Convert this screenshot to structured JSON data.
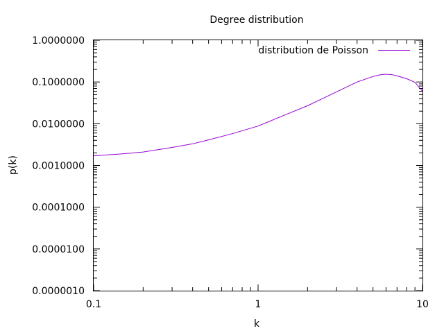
{
  "chart_data": {
    "type": "line",
    "title": "Degree distribution",
    "xlabel": "k",
    "ylabel": "p(k)",
    "x_scale": "log",
    "y_scale": "log",
    "xlim": [
      0.1,
      10
    ],
    "ylim": [
      1e-06,
      1
    ],
    "x_ticks": [
      {
        "value": 0.1,
        "label": "0.1"
      },
      {
        "value": 1,
        "label": "1"
      },
      {
        "value": 10,
        "label": "10"
      }
    ],
    "y_ticks": [
      {
        "value": 1,
        "label": "1.0000000"
      },
      {
        "value": 0.1,
        "label": "0.1000000"
      },
      {
        "value": 0.01,
        "label": "0.0100000"
      },
      {
        "value": 0.001,
        "label": "0.0010000"
      },
      {
        "value": 0.0001,
        "label": "0.0001000"
      },
      {
        "value": 1e-05,
        "label": "0.0000100"
      },
      {
        "value": 1e-06,
        "label": "0.0000010"
      }
    ],
    "grid": false,
    "legend_position": "top-right",
    "series": [
      {
        "name": "distribution de Poisson",
        "color": "#9400d3",
        "x": [
          0.1,
          0.15,
          0.2,
          0.3,
          0.4,
          0.5,
          0.7,
          1,
          1.5,
          2,
          2.5,
          3,
          4,
          5,
          5.5,
          6,
          6.5,
          7,
          8,
          9,
          10
        ],
        "y": [
          0.0017,
          0.0019,
          0.0021,
          0.0027,
          0.0033,
          0.0041,
          0.0058,
          0.0088,
          0.017,
          0.027,
          0.041,
          0.058,
          0.1,
          0.135,
          0.148,
          0.153,
          0.15,
          0.14,
          0.12,
          0.098,
          0.06
        ]
      }
    ]
  }
}
